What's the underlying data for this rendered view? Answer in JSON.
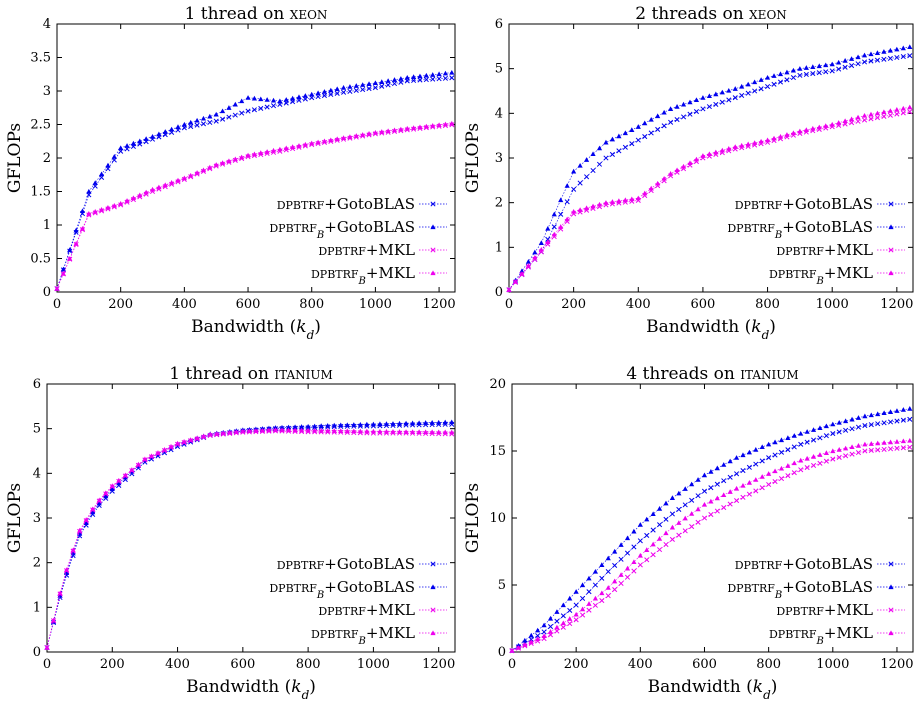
{
  "legend_entries": [
    {
      "method": "DPBTRF",
      "sub": "",
      "lib": "GotoBLAS"
    },
    {
      "method": "DPBTRF",
      "sub": "B",
      "lib": "GotoBLAS"
    },
    {
      "method": "DPBTRF",
      "sub": "",
      "lib": "MKL"
    },
    {
      "method": "DPBTRF",
      "sub": "B",
      "lib": "MKL"
    }
  ],
  "colors": {
    "gotoblas": "#0000ee",
    "mkl": "#ee00ee"
  },
  "chart_data": [
    {
      "type": "scatter",
      "title": "1 thread on XEON",
      "xlabel": "Bandwidth (k_d)",
      "ylabel": "GFLOPs",
      "xlim": [
        0,
        1250
      ],
      "ylim": [
        0,
        4
      ],
      "xticks": [
        0,
        200,
        400,
        600,
        800,
        1000,
        1200
      ],
      "yticks": [
        0,
        0.5,
        1,
        1.5,
        2,
        2.5,
        3,
        3.5,
        4
      ],
      "legend_position": "bottom-right",
      "series": [
        {
          "name": "DPBTRF+GotoBLAS",
          "marker": "x",
          "x": [
            0,
            100,
            200,
            300,
            400,
            500,
            600,
            700,
            800,
            900,
            1000,
            1100,
            1250
          ],
          "y": [
            0.05,
            1.45,
            2.1,
            2.28,
            2.45,
            2.55,
            2.7,
            2.8,
            2.9,
            2.98,
            3.05,
            3.15,
            3.2
          ]
        },
        {
          "name": "DPBTRF_B+GotoBLAS",
          "marker": "triangle",
          "x": [
            0,
            100,
            200,
            300,
            400,
            500,
            600,
            700,
            800,
            900,
            1000,
            1100,
            1250
          ],
          "y": [
            0.05,
            1.5,
            2.15,
            2.32,
            2.5,
            2.65,
            2.9,
            2.85,
            2.95,
            3.05,
            3.12,
            3.2,
            3.28
          ]
        },
        {
          "name": "DPBTRF+MKL",
          "marker": "x",
          "x": [
            0,
            100,
            200,
            300,
            400,
            500,
            600,
            700,
            800,
            900,
            1000,
            1100,
            1250
          ],
          "y": [
            0.05,
            1.15,
            1.3,
            1.5,
            1.68,
            1.88,
            2.02,
            2.1,
            2.2,
            2.28,
            2.36,
            2.42,
            2.5
          ]
        },
        {
          "name": "DPBTRF_B+MKL",
          "marker": "triangle",
          "x": [
            0,
            100,
            200,
            300,
            400,
            500,
            600,
            700,
            800,
            900,
            1000,
            1100,
            1250
          ],
          "y": [
            0.05,
            1.17,
            1.32,
            1.53,
            1.7,
            1.9,
            2.04,
            2.13,
            2.22,
            2.3,
            2.38,
            2.44,
            2.52
          ]
        }
      ]
    },
    {
      "type": "scatter",
      "title": "2 threads on XEON",
      "xlabel": "Bandwidth (k_d)",
      "ylabel": "GFLOPs",
      "xlim": [
        0,
        1250
      ],
      "ylim": [
        0,
        6
      ],
      "xticks": [
        0,
        200,
        400,
        600,
        800,
        1000,
        1200
      ],
      "yticks": [
        0,
        1,
        2,
        3,
        4,
        5,
        6
      ],
      "legend_position": "bottom-right",
      "series": [
        {
          "name": "DPBTRF+GotoBLAS",
          "marker": "x",
          "x": [
            0,
            100,
            200,
            300,
            400,
            500,
            600,
            700,
            800,
            900,
            1000,
            1100,
            1250
          ],
          "y": [
            0.05,
            0.9,
            2.3,
            3.0,
            3.4,
            3.8,
            4.1,
            4.35,
            4.6,
            4.85,
            4.95,
            5.15,
            5.3
          ]
        },
        {
          "name": "DPBTRF_B+GotoBLAS",
          "marker": "triangle",
          "x": [
            0,
            100,
            200,
            300,
            400,
            500,
            600,
            700,
            800,
            900,
            1000,
            1100,
            1250
          ],
          "y": [
            0.05,
            1.1,
            2.7,
            3.35,
            3.7,
            4.1,
            4.35,
            4.55,
            4.8,
            5.0,
            5.1,
            5.3,
            5.5
          ]
        },
        {
          "name": "DPBTRF+MKL",
          "marker": "x",
          "x": [
            0,
            100,
            200,
            300,
            400,
            500,
            600,
            700,
            800,
            900,
            1000,
            1100,
            1250
          ],
          "y": [
            0.05,
            0.9,
            1.75,
            1.95,
            2.05,
            2.6,
            3.0,
            3.2,
            3.35,
            3.55,
            3.7,
            3.85,
            4.05
          ]
        },
        {
          "name": "DPBTRF_B+MKL",
          "marker": "triangle",
          "x": [
            0,
            100,
            200,
            300,
            400,
            500,
            600,
            700,
            800,
            900,
            1000,
            1100,
            1250
          ],
          "y": [
            0.05,
            0.95,
            1.8,
            2.0,
            2.1,
            2.65,
            3.05,
            3.25,
            3.4,
            3.6,
            3.75,
            3.95,
            4.15
          ]
        }
      ]
    },
    {
      "type": "scatter",
      "title": "1 thread on ITANIUM",
      "xlabel": "Bandwidth (k_d)",
      "ylabel": "GFLOPs",
      "xlim": [
        0,
        1250
      ],
      "ylim": [
        0,
        6
      ],
      "xticks": [
        0,
        200,
        400,
        600,
        800,
        1000,
        1200
      ],
      "yticks": [
        0,
        1,
        2,
        3,
        4,
        5,
        6
      ],
      "legend_position": "bottom-right",
      "series": [
        {
          "name": "DPBTRF+GotoBLAS",
          "marker": "x",
          "x": [
            0,
            50,
            100,
            150,
            200,
            300,
            400,
            500,
            600,
            700,
            800,
            900,
            1000,
            1100,
            1250
          ],
          "y": [
            0.1,
            1.5,
            2.6,
            3.2,
            3.6,
            4.25,
            4.6,
            4.85,
            4.95,
            5.0,
            5.02,
            5.05,
            5.06,
            5.08,
            5.1
          ]
        },
        {
          "name": "DPBTRF_B+GotoBLAS",
          "marker": "triangle",
          "x": [
            0,
            50,
            100,
            150,
            200,
            300,
            400,
            500,
            600,
            700,
            800,
            900,
            1000,
            1100,
            1250
          ],
          "y": [
            0.1,
            1.55,
            2.65,
            3.25,
            3.65,
            4.3,
            4.65,
            4.88,
            4.97,
            5.02,
            5.05,
            5.08,
            5.1,
            5.12,
            5.15
          ]
        },
        {
          "name": "DPBTRF+MKL",
          "marker": "x",
          "x": [
            0,
            50,
            100,
            150,
            200,
            300,
            400,
            500,
            600,
            700,
            800,
            900,
            1000,
            1100,
            1250
          ],
          "y": [
            0.1,
            1.6,
            2.7,
            3.3,
            3.7,
            4.3,
            4.65,
            4.85,
            4.92,
            4.95,
            4.93,
            4.92,
            4.9,
            4.9,
            4.88
          ]
        },
        {
          "name": "DPBTRF_B+MKL",
          "marker": "triangle",
          "x": [
            0,
            50,
            100,
            150,
            200,
            300,
            400,
            500,
            600,
            700,
            800,
            900,
            1000,
            1100,
            1250
          ],
          "y": [
            0.1,
            1.62,
            2.72,
            3.32,
            3.72,
            4.32,
            4.67,
            4.87,
            4.94,
            4.97,
            4.96,
            4.95,
            4.94,
            4.93,
            4.92
          ]
        }
      ]
    },
    {
      "type": "scatter",
      "title": "4 threads on ITANIUM",
      "xlabel": "Bandwidth (k_d)",
      "ylabel": "GFLOPs",
      "xlim": [
        0,
        1250
      ],
      "ylim": [
        0,
        20
      ],
      "xticks": [
        0,
        200,
        400,
        600,
        800,
        1000,
        1200
      ],
      "yticks": [
        0,
        5,
        10,
        15,
        20
      ],
      "legend_position": "bottom-right",
      "series": [
        {
          "name": "DPBTRF+GotoBLAS",
          "marker": "x",
          "x": [
            0,
            100,
            200,
            300,
            400,
            500,
            600,
            700,
            800,
            900,
            1000,
            1100,
            1250
          ],
          "y": [
            0.1,
            1.5,
            3.5,
            6.0,
            8.3,
            10.3,
            12.0,
            13.3,
            14.5,
            15.5,
            16.3,
            16.9,
            17.4
          ]
        },
        {
          "name": "DPBTRF_B+GotoBLAS",
          "marker": "triangle",
          "x": [
            0,
            100,
            200,
            300,
            400,
            500,
            600,
            700,
            800,
            900,
            1000,
            1100,
            1250
          ],
          "y": [
            0.1,
            2.0,
            4.5,
            7.0,
            9.5,
            11.5,
            13.2,
            14.5,
            15.5,
            16.3,
            17.0,
            17.6,
            18.2
          ]
        },
        {
          "name": "DPBTRF+MKL",
          "marker": "x",
          "x": [
            0,
            100,
            200,
            300,
            400,
            500,
            600,
            700,
            800,
            900,
            1000,
            1100,
            1250
          ],
          "y": [
            0.1,
            1.0,
            2.4,
            4.2,
            6.5,
            8.4,
            10.0,
            11.3,
            12.5,
            13.6,
            14.4,
            15.0,
            15.3
          ]
        },
        {
          "name": "DPBTRF_B+MKL",
          "marker": "triangle",
          "x": [
            0,
            100,
            200,
            300,
            400,
            500,
            600,
            700,
            800,
            900,
            1000,
            1100,
            1250
          ],
          "y": [
            0.1,
            1.2,
            2.8,
            4.8,
            7.2,
            9.3,
            11.0,
            12.2,
            13.3,
            14.3,
            15.0,
            15.5,
            15.8
          ]
        }
      ]
    }
  ]
}
